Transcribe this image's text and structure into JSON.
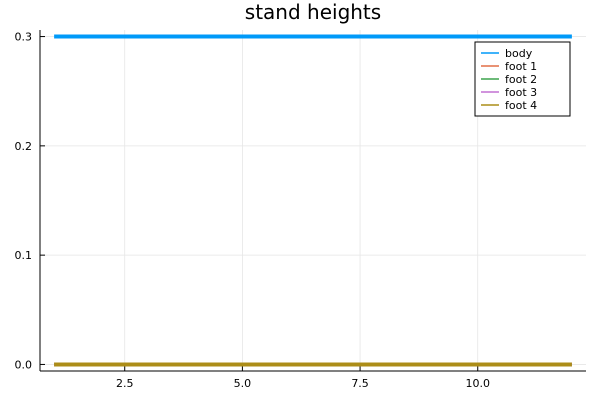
{
  "chart_data": {
    "type": "line",
    "title": "stand heights",
    "xlabel": "",
    "ylabel": "",
    "xlim": [
      0.7,
      12.3
    ],
    "ylim": [
      -0.006,
      0.306
    ],
    "x_ticks": [
      2.5,
      5.0,
      7.5,
      10.0
    ],
    "x_tick_labels": [
      "2.5",
      "5.0",
      "7.5",
      "10.0"
    ],
    "y_ticks": [
      0.0,
      0.1,
      0.2,
      0.3
    ],
    "y_tick_labels": [
      "0.0",
      "0.1",
      "0.2",
      "0.3"
    ],
    "grid": true,
    "legend_position": "top-right",
    "series": [
      {
        "name": "body",
        "color": "#009af9",
        "x": [
          1,
          12
        ],
        "y": [
          0.3,
          0.3
        ]
      },
      {
        "name": "foot 1",
        "color": "#e26f46",
        "x": [
          1,
          12
        ],
        "y": [
          0.0,
          0.0
        ]
      },
      {
        "name": "foot 2",
        "color": "#3da44d",
        "x": [
          1,
          12
        ],
        "y": [
          0.0,
          0.0
        ]
      },
      {
        "name": "foot 3",
        "color": "#c271d2",
        "x": [
          1,
          12
        ],
        "y": [
          0.0,
          0.0
        ]
      },
      {
        "name": "foot 4",
        "color": "#ac8d18",
        "x": [
          1,
          12
        ],
        "y": [
          0.0,
          0.0
        ]
      }
    ]
  }
}
